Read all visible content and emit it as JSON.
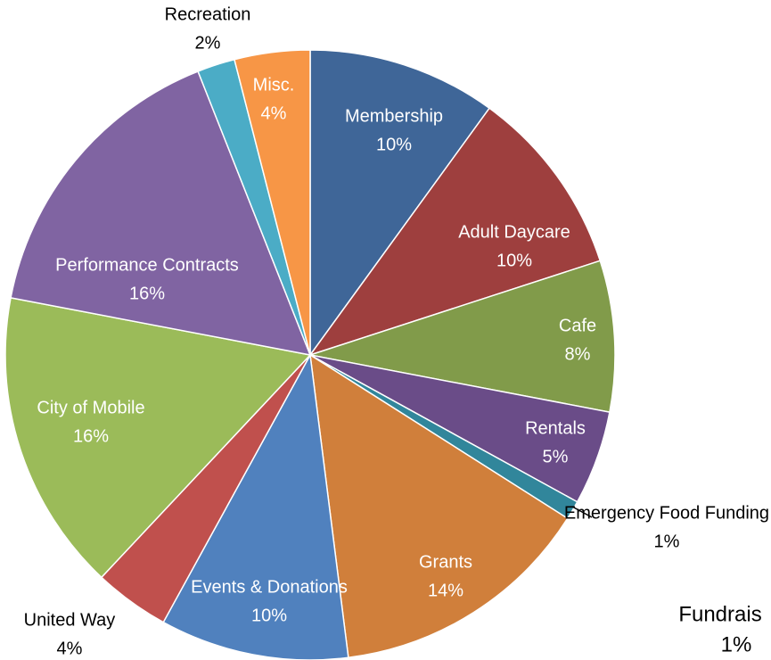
{
  "chart_data": {
    "type": "pie",
    "categories": [
      "Membership",
      "Adult Daycare",
      "Cafe",
      "Rentals",
      "Emergency Food Funding",
      "Grants",
      "Events & Donations",
      "United Way",
      "City of Mobile",
      "Performance Contracts",
      "Recreation",
      "Misc."
    ],
    "values": [
      10,
      10,
      8,
      5,
      1,
      14,
      10,
      4,
      16,
      16,
      2,
      4
    ],
    "value_labels": [
      "10%",
      "10%",
      "8%",
      "5%",
      "1%",
      "14%",
      "10%",
      "4%",
      "16%",
      "16%",
      "2%",
      "4%"
    ],
    "colors": [
      "#3f6698",
      "#9e3f3e",
      "#819b4a",
      "#6a4c88",
      "#31869b",
      "#d07f3b",
      "#5081be",
      "#c0504d",
      "#9bbb59",
      "#8064a2",
      "#4bacc6",
      "#f79646"
    ],
    "annotations": [
      "Fundrais",
      "1%"
    ]
  }
}
